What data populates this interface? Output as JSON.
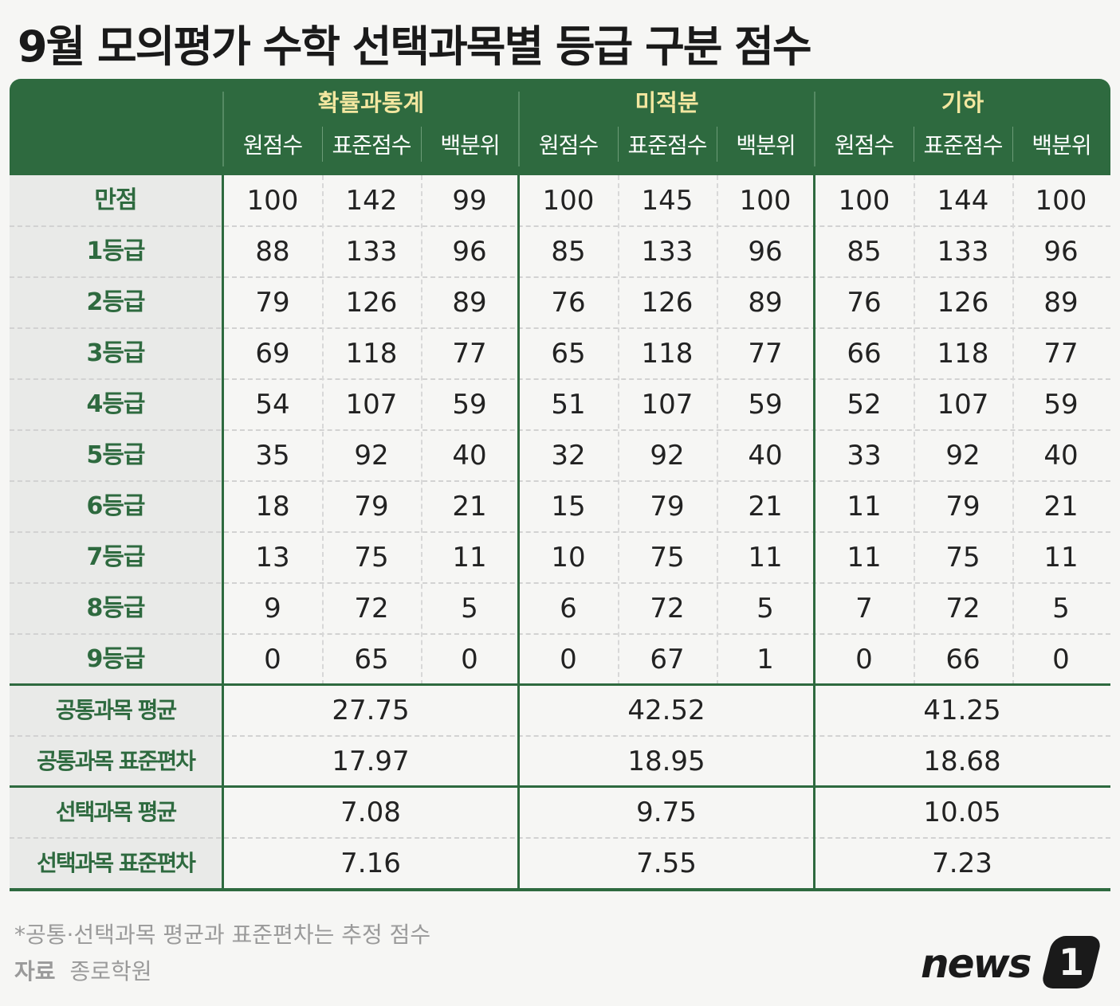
{
  "title": "9월 모의평가 수학 선택과목별 등급 구분 점수",
  "colors": {
    "accent": "#2e6a3f",
    "header_subject": "#f3e7a0",
    "label_bg": "#e9eae8"
  },
  "subjects": [
    "확률과통계",
    "미적분",
    "기하"
  ],
  "sub_columns": [
    "원점수",
    "표준점수",
    "백분위"
  ],
  "grade_labels": [
    "만점",
    "1등급",
    "2등급",
    "3등급",
    "4등급",
    "5등급",
    "6등급",
    "7등급",
    "8등급",
    "9등급"
  ],
  "grade_rows": [
    [
      "100",
      "142",
      "99",
      "100",
      "145",
      "100",
      "100",
      "144",
      "100"
    ],
    [
      "88",
      "133",
      "96",
      "85",
      "133",
      "96",
      "85",
      "133",
      "96"
    ],
    [
      "79",
      "126",
      "89",
      "76",
      "126",
      "89",
      "76",
      "126",
      "89"
    ],
    [
      "69",
      "118",
      "77",
      "65",
      "118",
      "77",
      "66",
      "118",
      "77"
    ],
    [
      "54",
      "107",
      "59",
      "51",
      "107",
      "59",
      "52",
      "107",
      "59"
    ],
    [
      "35",
      "92",
      "40",
      "32",
      "92",
      "40",
      "33",
      "92",
      "40"
    ],
    [
      "18",
      "79",
      "21",
      "15",
      "79",
      "21",
      "11",
      "79",
      "21"
    ],
    [
      "13",
      "75",
      "11",
      "10",
      "75",
      "11",
      "11",
      "75",
      "11"
    ],
    [
      "9",
      "72",
      "5",
      "6",
      "72",
      "5",
      "7",
      "72",
      "5"
    ],
    [
      "0",
      "65",
      "0",
      "0",
      "67",
      "1",
      "0",
      "66",
      "0"
    ]
  ],
  "stat_labels": [
    "공통과목 평균",
    "공통과목 표준편차",
    "선택과목 평균",
    "선택과목 표준편차"
  ],
  "stat_rows": [
    [
      "27.75",
      "42.52",
      "41.25"
    ],
    [
      "17.97",
      "18.95",
      "18.68"
    ],
    [
      "7.08",
      "9.75",
      "10.05"
    ],
    [
      "7.16",
      "7.55",
      "7.23"
    ]
  ],
  "note": "*공통·선택과목 평균과 표준편차는 추정 점수",
  "source_label": "자료",
  "source_value": "종로학원",
  "logo": {
    "text": "news",
    "badge": "1"
  },
  "chart_data": {
    "type": "table",
    "title": "9월 모의평가 수학 선택과목별 등급 구분 점수",
    "groups": [
      "확률과통계",
      "미적분",
      "기하"
    ],
    "columns": [
      "원점수",
      "표준점수",
      "백분위"
    ],
    "rows": [
      "만점",
      "1등급",
      "2등급",
      "3등급",
      "4등급",
      "5등급",
      "6등급",
      "7등급",
      "8등급",
      "9등급"
    ],
    "values": {
      "확률과통계": {
        "원점수": [
          100,
          88,
          79,
          69,
          54,
          35,
          18,
          13,
          9,
          0
        ],
        "표준점수": [
          142,
          133,
          126,
          118,
          107,
          92,
          79,
          75,
          72,
          65
        ],
        "백분위": [
          99,
          96,
          89,
          77,
          59,
          40,
          21,
          11,
          5,
          0
        ]
      },
      "미적분": {
        "원점수": [
          100,
          85,
          76,
          65,
          51,
          32,
          15,
          10,
          6,
          0
        ],
        "표준점수": [
          145,
          133,
          126,
          118,
          107,
          92,
          79,
          75,
          72,
          67
        ],
        "백분위": [
          100,
          96,
          89,
          77,
          59,
          40,
          21,
          11,
          5,
          1
        ]
      },
      "기하": {
        "원점수": [
          100,
          85,
          76,
          66,
          52,
          33,
          11,
          11,
          7,
          0
        ],
        "표준점수": [
          144,
          133,
          126,
          118,
          107,
          92,
          79,
          75,
          72,
          66
        ],
        "백분위": [
          100,
          96,
          89,
          77,
          59,
          40,
          21,
          11,
          5,
          0
        ]
      }
    },
    "stats": {
      "공통과목 평균": [
        27.75,
        42.52,
        41.25
      ],
      "공통과목 표준편차": [
        17.97,
        18.95,
        18.68
      ],
      "선택과목 평균": [
        7.08,
        9.75,
        10.05
      ],
      "선택과목 표준편차": [
        7.16,
        7.55,
        7.23
      ]
    },
    "note": "*공통·선택과목 평균과 표준편차는 추정 점수",
    "source": "종로학원"
  }
}
